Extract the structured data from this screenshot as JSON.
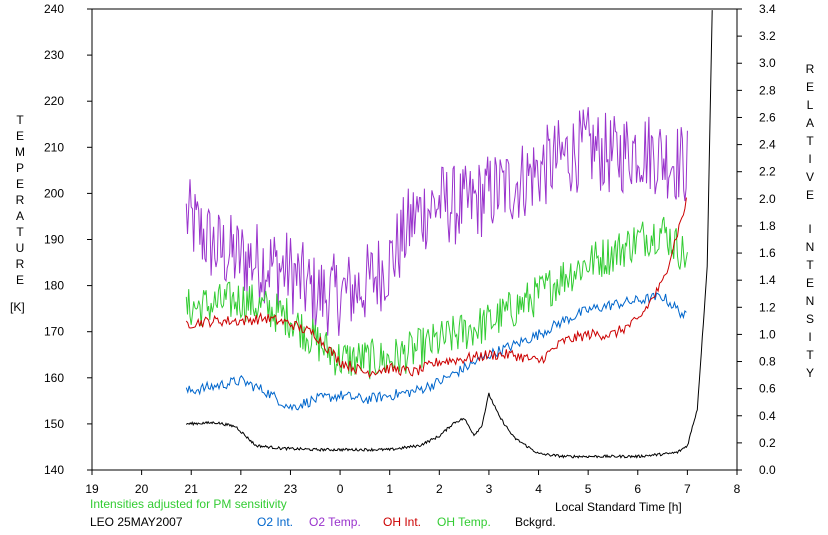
{
  "chart_data": {
    "type": "line",
    "left_axis": {
      "label_letters": [
        "T",
        "E",
        "M",
        "P",
        "E",
        "R",
        "A",
        "T",
        "U",
        "R",
        "E"
      ],
      "unit": "[K]",
      "ylim": [
        140,
        240
      ],
      "ticks": [
        "240",
        "230",
        "220",
        "210",
        "200",
        "190",
        "180",
        "170",
        "160",
        "150",
        "140"
      ]
    },
    "right_axis": {
      "label_letters_word1": [
        "R",
        "E",
        "L",
        "A",
        "T",
        "I",
        "V",
        "E"
      ],
      "label_letters_word2": [
        "I",
        "N",
        "T",
        "E",
        "N",
        "S",
        "I",
        "T",
        "Y"
      ],
      "ylim": [
        0.0,
        3.4
      ],
      "ticks": [
        "3.4",
        "3.2",
        "3.0",
        "2.8",
        "2.6",
        "2.4",
        "2.2",
        "2.0",
        "1.8",
        "1.6",
        "1.4",
        "1.2",
        "1.0",
        "0.8",
        "0.6",
        "0.4",
        "0.2",
        "0.0"
      ]
    },
    "x_axis": {
      "label": "Local Standard Time [h]",
      "xlim": [
        19,
        32
      ],
      "ticks": [
        "19",
        "20",
        "21",
        "22",
        "23",
        "0",
        "1",
        "2",
        "3",
        "4",
        "5",
        "6",
        "7",
        "8"
      ]
    },
    "series": [
      {
        "name": "O2 Temp.",
        "color": "#9933CC",
        "axis": "left",
        "x": [
          20.9,
          21.5,
          22,
          22.5,
          23,
          23.5,
          24,
          24.5,
          25,
          25.5,
          26,
          26.5,
          27,
          27.5,
          28,
          28.5,
          29,
          29.5,
          30,
          30.5,
          31
        ],
        "y": [
          195,
          188,
          186,
          185,
          183,
          178,
          178,
          180,
          185,
          195,
          198,
          197,
          200,
          202,
          205,
          208,
          210,
          208,
          210,
          208,
          206
        ]
      },
      {
        "name": "OH Temp.",
        "color": "#33CC33",
        "axis": "left",
        "x": [
          20.9,
          21.5,
          22,
          22.5,
          23,
          23.5,
          24,
          24.5,
          25,
          25.5,
          26,
          26.5,
          27,
          27.5,
          28,
          28.5,
          29,
          29.5,
          30,
          30.5,
          31
        ],
        "y": [
          175,
          176,
          177,
          175,
          173,
          168,
          164,
          164,
          164,
          166,
          168,
          170,
          172,
          175,
          178,
          182,
          185,
          187,
          190,
          192,
          186
        ]
      },
      {
        "name": "O2 Int.",
        "color": "#0066CC",
        "axis": "right",
        "x": [
          20.9,
          21.5,
          22,
          22.5,
          23,
          23.5,
          24,
          24.5,
          25,
          25.5,
          26,
          26.5,
          27,
          27.5,
          28,
          28.5,
          29,
          29.5,
          30,
          30.5,
          31
        ],
        "y": [
          0.58,
          0.62,
          0.66,
          0.58,
          0.46,
          0.52,
          0.55,
          0.52,
          0.55,
          0.58,
          0.65,
          0.75,
          0.85,
          0.92,
          1.0,
          1.1,
          1.18,
          1.22,
          1.25,
          1.28,
          1.12
        ]
      },
      {
        "name": "OH Int.",
        "color": "#CC0000",
        "axis": "right",
        "x": [
          20.9,
          21.5,
          22,
          22.5,
          23,
          23.5,
          24,
          24.5,
          25,
          25.5,
          26,
          26.5,
          27,
          27.5,
          28,
          28.5,
          29,
          29.5,
          30,
          30.5,
          31
        ],
        "y": [
          1.08,
          1.1,
          1.1,
          1.12,
          1.08,
          1.0,
          0.8,
          0.72,
          0.75,
          0.72,
          0.8,
          0.82,
          0.85,
          0.85,
          0.8,
          0.95,
          1.0,
          1.0,
          1.1,
          1.38,
          2.0
        ]
      },
      {
        "name": "Bckgrd.",
        "color": "#000000",
        "axis": "right",
        "x": [
          20.9,
          21.5,
          21.9,
          22.3,
          22.8,
          23.5,
          24.2,
          25,
          25.6,
          26,
          26.3,
          26.5,
          26.7,
          26.85,
          27,
          27.2,
          27.5,
          28,
          28.5,
          29,
          29.5,
          30,
          30.6,
          30.8,
          31.0,
          31.2,
          31.4,
          31.5
        ],
        "y": [
          0.34,
          0.35,
          0.32,
          0.18,
          0.16,
          0.15,
          0.15,
          0.15,
          0.18,
          0.25,
          0.35,
          0.38,
          0.26,
          0.32,
          0.56,
          0.4,
          0.24,
          0.12,
          0.1,
          0.1,
          0.1,
          0.1,
          0.12,
          0.13,
          0.18,
          0.45,
          1.5,
          3.4
        ]
      }
    ]
  },
  "footer": {
    "note": "Intensities adjusted for PM sensitivity",
    "note_color": "#33CC33",
    "site_date": "LEO 25MAY2007"
  }
}
